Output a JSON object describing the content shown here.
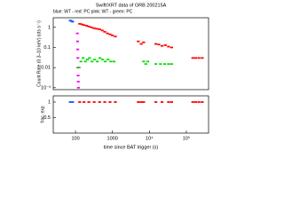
{
  "chart_data": [
    {
      "type": "scatter",
      "title": "Swift/XRT data of GRB 200215A",
      "subtitle": "blue: WT - red: PC    pink: WT - green: PC",
      "y_label": "Count Rate (0.3–10 keV) (cts s⁻¹)",
      "log_x": true,
      "log_y": true,
      "xlim": [
        25,
        400000
      ],
      "ylim": [
        0.0008,
        3
      ],
      "yticks": [
        1,
        0.1,
        0.01,
        {
          "value": 0.001,
          "label": "10⁻³"
        }
      ],
      "series": [
        {
          "color": "#2060ff",
          "x": [
            72,
            76,
            80,
            84
          ],
          "values": [
            2.2,
            2.1,
            2,
            1.9
          ]
        },
        {
          "color": "#ff00ff",
          "x": [
            112,
            114,
            115,
            116,
            117,
            118,
            119,
            120
          ],
          "values": [
            0.5,
            0.2,
            0.08,
            0.03,
            0.01,
            0.004,
            0.002,
            0.001
          ]
        },
        {
          "color": "#ff0000",
          "x": [
            130,
            150,
            170,
            200,
            230,
            270,
            320,
            380,
            450,
            530,
            620,
            730,
            860,
            1000,
            1200,
            5000,
            6000,
            7000,
            15000,
            18000,
            22000,
            27000,
            33000,
            40000,
            150000,
            180000,
            220000,
            270000
          ],
          "values": [
            1.5,
            1.4,
            1.3,
            1.2,
            1.1,
            1,
            0.9,
            0.85,
            0.8,
            0.7,
            0.6,
            0.5,
            0.45,
            0.4,
            0.35,
            0.2,
            0.15,
            0.18,
            0.15,
            0.14,
            0.12,
            0.13,
            0.11,
            0.1,
            0.03,
            0.03,
            0.03,
            0.03
          ]
        },
        {
          "color": "#00e000",
          "x": [
            125,
            140,
            160,
            185,
            210,
            240,
            280,
            330,
            390,
            460,
            540,
            640,
            760,
            900,
            1100,
            7000,
            8000,
            9000,
            15000,
            20000,
            26000,
            33000,
            40000
          ],
          "values": [
            0.01,
            0.02,
            0.03,
            0.02,
            0.025,
            0.03,
            0.02,
            0.025,
            0.02,
            0.03,
            0.025,
            0.02,
            0.025,
            0.02,
            0.02,
            0.02,
            0.015,
            0.02,
            0.015,
            0.015,
            0.015,
            0.015,
            0.015
          ]
        }
      ]
    },
    {
      "type": "scatter",
      "y_label": "frac. exp",
      "x_label": "time since BAT trigger (s)",
      "log_x": true,
      "log_y": false,
      "xlim": [
        25,
        400000
      ],
      "ylim": [
        0,
        1.2
      ],
      "yticks": [
        0.5,
        1
      ],
      "xticks": [
        100,
        1000,
        {
          "value": 10000,
          "label": "10⁴"
        },
        {
          "value": 100000,
          "label": "10⁵"
        }
      ],
      "series": [
        {
          "color": "#2060ff",
          "x": [
            72,
            76,
            80,
            84
          ],
          "values": [
            1,
            1,
            1,
            1
          ]
        },
        {
          "color": "#ff0000",
          "x": [
            130,
            170,
            230,
            320,
            450,
            620,
            860,
            1200,
            5000,
            6000,
            7000,
            15000,
            22000,
            33000,
            40000,
            150000,
            180000,
            220000,
            270000
          ],
          "values": [
            1,
            1,
            1,
            1,
            1,
            1,
            1,
            1,
            1,
            1,
            1,
            1,
            1,
            1,
            1,
            1,
            1,
            1,
            1
          ]
        }
      ]
    }
  ]
}
